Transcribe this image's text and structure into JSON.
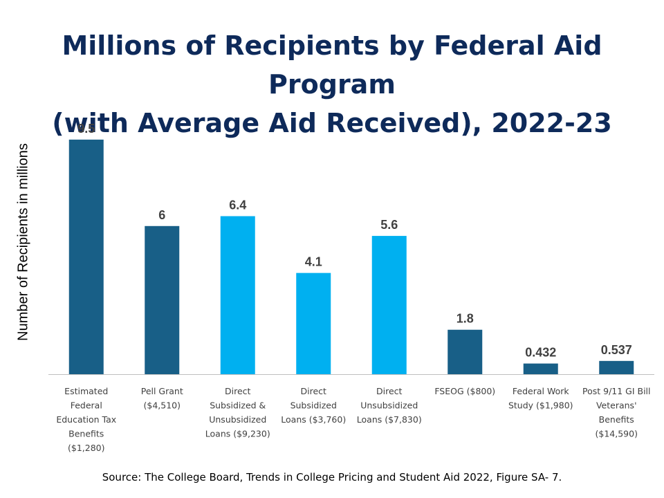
{
  "slide": {
    "title_line1": "Millions of Recipients by Federal Aid Program",
    "title_line2": "(with Average Aid Received), 2022-23",
    "source": "Source: The College Board, Trends in College Pricing and Student Aid 2022, Figure SA- 7."
  },
  "colors": {
    "title": "#0e2a5a",
    "bar_dark": "#185f87",
    "bar_light": "#00b0f0",
    "axis": "#bfbfbf",
    "value_label": "#404040",
    "category_label": "#404040"
  },
  "chart_data": {
    "type": "bar",
    "title": "Millions of Recipients by Federal Aid Program (with Average Aid Received), 2022-23",
    "xlabel": "",
    "ylabel": "Number of Recipients in millions",
    "ylim": [
      0,
      10
    ],
    "grid": false,
    "legend": "none",
    "categories": [
      [
        "Estimated",
        "Federal",
        "Education Tax",
        "Benefits",
        "($1,280)"
      ],
      [
        "Pell Grant",
        "($4,510)"
      ],
      [
        "Direct",
        "Subsidized &",
        "Unsubsidized",
        "Loans ($9,230)"
      ],
      [
        "Direct",
        "Subsidized",
        "Loans ($3,760)"
      ],
      [
        "Direct",
        "Unsubsidized",
        "Loans ($7,830)"
      ],
      [
        "FSEOG ($800)"
      ],
      [
        "Federal Work",
        "Study ($1,980)"
      ],
      [
        "Post 9/11 GI Bill",
        "Veterans'",
        "Benefits",
        "($14,590)"
      ]
    ],
    "values": [
      9.5,
      6,
      6.4,
      4.1,
      5.6,
      1.8,
      0.432,
      0.537
    ],
    "value_labels": [
      "9.5",
      "6",
      "6.4",
      "4.1",
      "5.6",
      "1.8",
      "0.432",
      "0.537"
    ],
    "bar_colors": [
      "#185f87",
      "#185f87",
      "#00b0f0",
      "#00b0f0",
      "#00b0f0",
      "#185f87",
      "#185f87",
      "#185f87"
    ]
  }
}
